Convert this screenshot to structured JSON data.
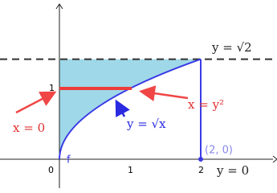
{
  "labels": {
    "y_sqrt2": "y = √2",
    "x_zero": "x = 0",
    "x_y2": "x = y²",
    "y_sqrtx": "y = √x",
    "point": "(2, 0)",
    "y_zero": "y = 0",
    "f": "f"
  },
  "ticks": {
    "x0": "0",
    "x1": "1",
    "x2": "2",
    "y1": "1"
  }
}
